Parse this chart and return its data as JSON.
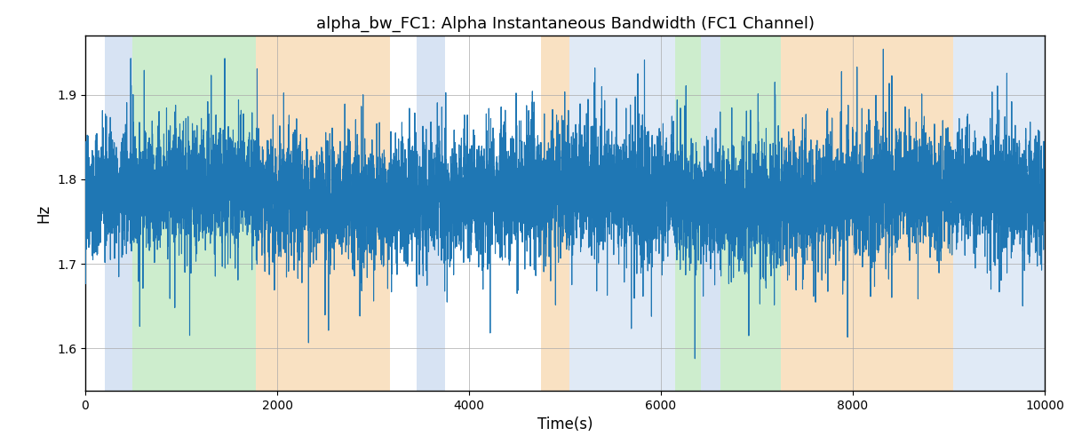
{
  "title": "alpha_bw_FC1: Alpha Instantaneous Bandwidth (FC1 Channel)",
  "xlabel": "Time(s)",
  "ylabel": "Hz",
  "xlim": [
    0,
    10000
  ],
  "ylim": [
    1.55,
    1.97
  ],
  "yticks": [
    1.6,
    1.7,
    1.8,
    1.9
  ],
  "xticks": [
    0,
    2000,
    4000,
    6000,
    8000,
    10000
  ],
  "line_color": "#1f77b4",
  "line_width": 0.8,
  "background_color": "#ffffff",
  "grid_color": "#aaaaaa",
  "regions": [
    {
      "start": 200,
      "end": 490,
      "color": "#b0c8e8",
      "alpha": 0.5
    },
    {
      "start": 490,
      "end": 1780,
      "color": "#90d890",
      "alpha": 0.45
    },
    {
      "start": 1780,
      "end": 3180,
      "color": "#f5c990",
      "alpha": 0.55
    },
    {
      "start": 3450,
      "end": 3750,
      "color": "#b0c8e8",
      "alpha": 0.5
    },
    {
      "start": 4750,
      "end": 5050,
      "color": "#f5c990",
      "alpha": 0.55
    },
    {
      "start": 5050,
      "end": 6150,
      "color": "#b0c8e8",
      "alpha": 0.38
    },
    {
      "start": 6150,
      "end": 6420,
      "color": "#90d890",
      "alpha": 0.45
    },
    {
      "start": 6420,
      "end": 6620,
      "color": "#b0c8e8",
      "alpha": 0.5
    },
    {
      "start": 6620,
      "end": 7250,
      "color": "#90d890",
      "alpha": 0.45
    },
    {
      "start": 7250,
      "end": 9050,
      "color": "#f5c990",
      "alpha": 0.55
    },
    {
      "start": 9050,
      "end": 10000,
      "color": "#b0c8e8",
      "alpha": 0.38
    }
  ],
  "seed": 42,
  "n_points": 10000,
  "signal_mean": 1.78,
  "title_fontsize": 13,
  "figsize": [
    12.0,
    5.0
  ],
  "dpi": 100
}
